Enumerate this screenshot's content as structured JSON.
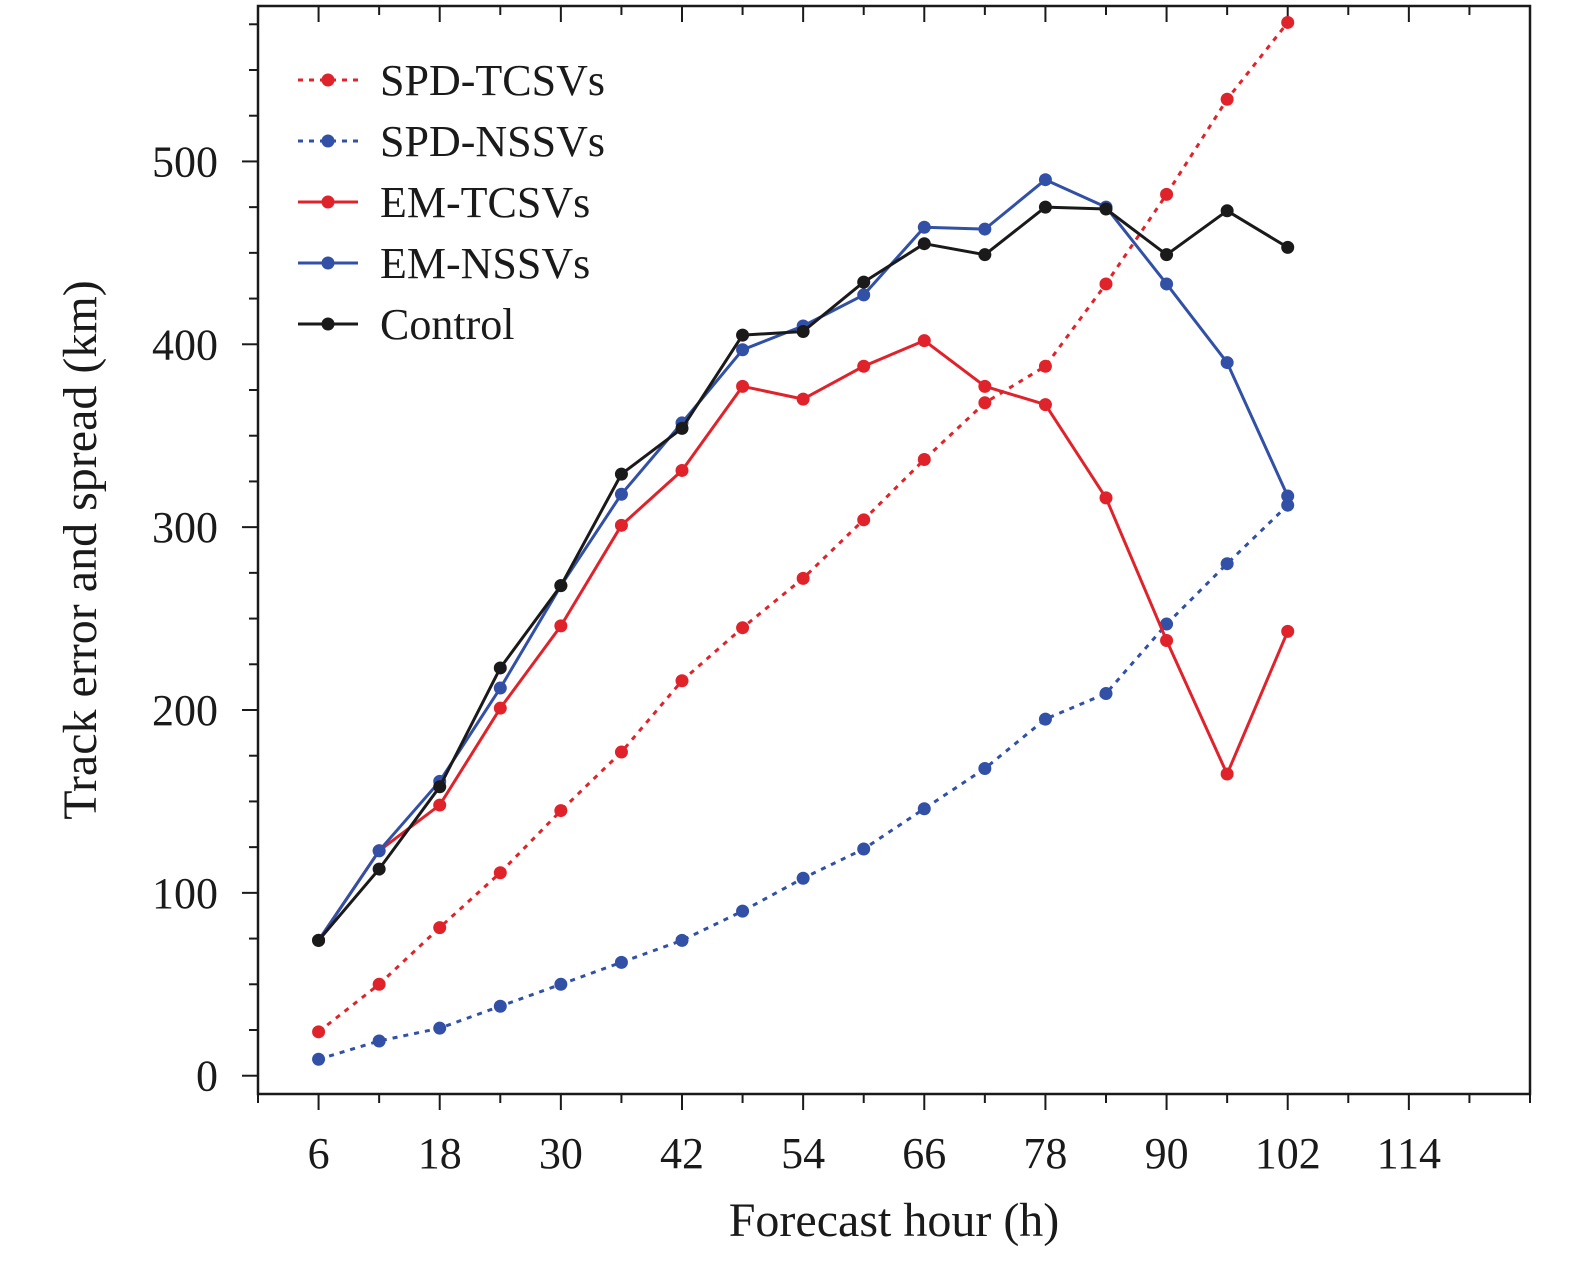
{
  "chart_data": {
    "type": "line",
    "xlabel": "Forecast hour (h)",
    "ylabel": "Track error and spread (km)",
    "xlim": [
      0,
      126
    ],
    "ylim": [
      -10,
      585
    ],
    "x_ticks": [
      6,
      18,
      30,
      42,
      54,
      66,
      78,
      90,
      102,
      114
    ],
    "y_ticks": [
      0,
      100,
      200,
      300,
      400,
      500
    ],
    "x": [
      6,
      12,
      18,
      24,
      30,
      36,
      42,
      48,
      54,
      60,
      66,
      72,
      78,
      84,
      90,
      96,
      102
    ],
    "legend_position": "top-left",
    "series": [
      {
        "name": "SPD-TCSVs",
        "style": "dotted",
        "color": "#e0232b",
        "values": [
          24,
          50,
          81,
          111,
          145,
          177,
          216,
          245,
          272,
          304,
          337,
          368,
          388,
          433,
          482,
          534,
          576
        ]
      },
      {
        "name": "SPD-NSSVs",
        "style": "dotted",
        "color": "#3150a6",
        "values": [
          9,
          19,
          26,
          38,
          50,
          62,
          74,
          90,
          108,
          124,
          146,
          168,
          195,
          209,
          247,
          280,
          312
        ]
      },
      {
        "name": "EM-TCSVs",
        "style": "solid",
        "color": "#e0232b",
        "values": [
          74,
          123,
          148,
          201,
          246,
          301,
          331,
          377,
          370,
          388,
          402,
          377,
          367,
          316,
          238,
          165,
          243
        ]
      },
      {
        "name": "EM-NSSVs",
        "style": "solid",
        "color": "#3150a6",
        "values": [
          74,
          123,
          161,
          212,
          268,
          318,
          357,
          397,
          410,
          427,
          464,
          463,
          490,
          475,
          433,
          390,
          317
        ]
      },
      {
        "name": "Control",
        "style": "solid",
        "color": "#1a1a1a",
        "values": [
          74,
          113,
          158,
          223,
          268,
          329,
          354,
          405,
          407,
          434,
          455,
          449,
          475,
          474,
          449,
          473,
          453
        ]
      }
    ]
  }
}
